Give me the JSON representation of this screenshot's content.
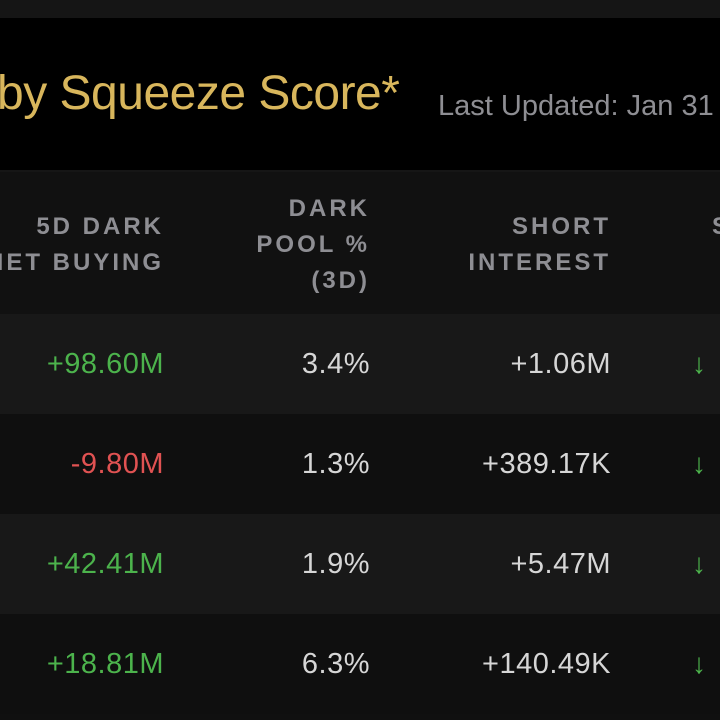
{
  "header": {
    "title": "by Squeeze Score*",
    "last_updated": "Last Updated: Jan 31"
  },
  "table": {
    "columns": [
      {
        "line1": "5D DARK",
        "line2": "NET BUYING"
      },
      {
        "line1": "DARK",
        "line2": "POOL %",
        "line3": "(3D)"
      },
      {
        "line1": "SHORT",
        "line2": "INTEREST"
      },
      {
        "line1": "S"
      }
    ],
    "rows": [
      {
        "net_buying": "+98.60M",
        "dark_pool_pct": "3.4%",
        "short_interest": "+1.06M",
        "trend": "↓"
      },
      {
        "net_buying": "-9.80M",
        "dark_pool_pct": "1.3%",
        "short_interest": "+389.17K",
        "trend": "↓"
      },
      {
        "net_buying": "+42.41M",
        "dark_pool_pct": "1.9%",
        "short_interest": "+5.47M",
        "trend": "↓"
      },
      {
        "net_buying": "+18.81M",
        "dark_pool_pct": "6.3%",
        "short_interest": "+140.49K",
        "trend": "↓"
      }
    ]
  },
  "colors": {
    "title": "#d8b65c",
    "positive": "#4cb34c",
    "negative": "#e05252",
    "muted": "#8e8e93",
    "value": "#d6d6d6"
  },
  "icons": {
    "trend": "arrow-down-icon"
  }
}
